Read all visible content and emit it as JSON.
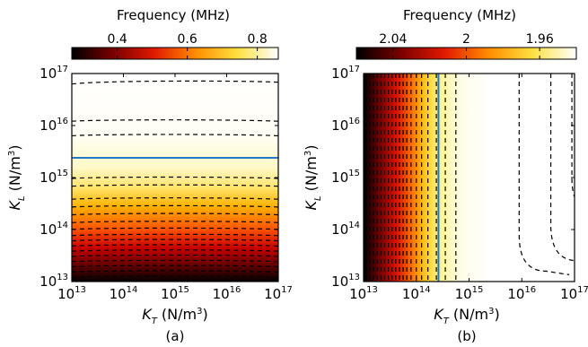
{
  "chart_data": [
    {
      "type": "heatmap",
      "panel_label": "(a)",
      "colorbar": {
        "title": "Frequency (MHz)",
        "cmap": "hot",
        "range": [
          0.27,
          0.86
        ],
        "ticks": [
          0.4,
          0.6,
          0.8
        ],
        "tick_labels": [
          "0.4",
          "0.6",
          "0.8"
        ]
      },
      "x_axis": {
        "label_sym": "K",
        "label_sub": "T",
        "label_unit": " (N/m",
        "label_exp": "3",
        "label_end": ")",
        "scale": "log",
        "lim_exp": [
          13,
          17
        ],
        "ticks_exp": [
          13,
          14,
          15,
          16,
          17
        ]
      },
      "y_axis": {
        "label_sym": "K",
        "label_sub": "L",
        "label_unit": " (N/m",
        "label_exp": "3",
        "label_end": ")",
        "scale": "log",
        "lim_exp": [
          13,
          17
        ],
        "ticks_exp": [
          13,
          14,
          15,
          16,
          17
        ]
      },
      "tick_base": "10",
      "varies_along": "y",
      "contour_style": "dashed",
      "contours_log10": [
        16.85,
        16.1,
        15.82,
        15.0,
        14.85,
        14.6,
        14.45,
        14.3,
        14.15,
        14.02,
        13.9,
        13.8,
        13.7,
        13.6,
        13.5,
        13.4,
        13.3,
        13.2,
        13.1
      ],
      "highlight_line": {
        "color": "#1f78c8",
        "log10_position": 15.38
      }
    },
    {
      "type": "heatmap",
      "panel_label": "(b)",
      "colorbar": {
        "title": "Frequency (MHz)",
        "cmap": "hot",
        "range": [
          2.06,
          1.94
        ],
        "ticks": [
          2.04,
          2.0,
          1.96
        ],
        "tick_labels": [
          "2.04",
          "2",
          "1.96"
        ]
      },
      "x_axis": {
        "label_sym": "K",
        "label_sub": "T",
        "label_unit": " (N/m",
        "label_exp": "3",
        "label_end": ")",
        "scale": "log",
        "lim_exp": [
          13,
          17
        ],
        "ticks_exp": [
          13,
          14,
          15,
          16,
          17
        ]
      },
      "y_axis": {
        "label_sym": "K",
        "label_sub": "L",
        "label_unit": " (N/m",
        "label_exp": "3",
        "label_end": ")",
        "scale": "log",
        "lim_exp": [
          13,
          17
        ],
        "ticks_exp": [
          13,
          14,
          15,
          16,
          17
        ]
      },
      "tick_base": "10",
      "varies_along": "x",
      "contour_style": "dashed",
      "contours_log10": [
        13.05,
        13.12,
        13.19,
        13.26,
        13.33,
        13.4,
        13.47,
        13.54,
        13.61,
        13.68,
        13.75,
        13.82,
        13.9,
        14.0,
        14.1,
        14.22,
        14.38,
        14.55,
        14.75
      ],
      "curved_contours": [
        {
          "vertical_at_log10_x": 15.95,
          "bends_to_log10_x": 16.9,
          "floor_log10_y": 13.2
        },
        {
          "vertical_at_log10_x": 16.55,
          "bends_to_log10_x": 17.0,
          "floor_log10_y": 13.4
        },
        {
          "vertical_at_log10_x": 16.95,
          "bends_to_log10_x": 17.0,
          "floor_log10_y": 14.3
        }
      ],
      "highlight_line": {
        "color": "#1f78c8",
        "log10_position": 14.42
      }
    }
  ]
}
